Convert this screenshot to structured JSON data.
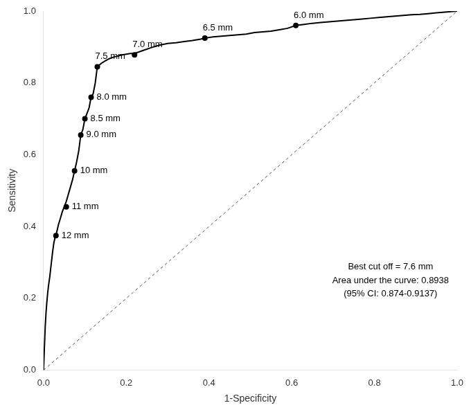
{
  "chart_data": {
    "type": "line",
    "xlabel": "1-Specificity",
    "ylabel": "Sensitivity",
    "annotations": [
      "Best cut off = 7.6 mm",
      "Area under the curve: 0.8938",
      "(95% CI: 0.874-0.9137)"
    ],
    "xlim": [
      0.0,
      1.0
    ],
    "ylim": [
      0.0,
      1.0
    ],
    "xticks": [
      {
        "value": 0.0,
        "label": "0.0"
      },
      0.2,
      0.4,
      0.6,
      0.8,
      {
        "value": 1.0,
        "label": "1.0"
      }
    ],
    "yticks": [
      {
        "value": 0.0,
        "label": "0.0"
      },
      0.2,
      0.4,
      0.6,
      0.8,
      {
        "value": 1.0,
        "label": "1.0"
      }
    ],
    "grid": false,
    "series": [
      {
        "type": "line",
        "line_style": "dashed",
        "color": "#555555",
        "x": [
          0,
          1
        ],
        "values": [
          0,
          1
        ]
      },
      {
        "type": "line",
        "line_style": "solid",
        "color": "#000000",
        "x": [
          0.0,
          0.002,
          0.004,
          0.006,
          0.008,
          0.01,
          0.012,
          0.015,
          0.018,
          0.02,
          0.022,
          0.025,
          0.028,
          0.03,
          0.033,
          0.036,
          0.04,
          0.045,
          0.05,
          0.055,
          0.06,
          0.065,
          0.07,
          0.075,
          0.08,
          0.085,
          0.09,
          0.095,
          0.1,
          0.105,
          0.11,
          0.115,
          0.12,
          0.125,
          0.13,
          0.14,
          0.15,
          0.16,
          0.17,
          0.18,
          0.19,
          0.2,
          0.21,
          0.22,
          0.24,
          0.26,
          0.28,
          0.3,
          0.32,
          0.34,
          0.36,
          0.38,
          0.39,
          0.41,
          0.43,
          0.45,
          0.47,
          0.49,
          0.51,
          0.53,
          0.55,
          0.57,
          0.59,
          0.61,
          0.63,
          0.65,
          0.67,
          0.69,
          0.71,
          0.73,
          0.75,
          0.77,
          0.79,
          0.81,
          0.83,
          0.85,
          0.87,
          0.89,
          0.91,
          0.93,
          0.95,
          0.97,
          0.99,
          1.0
        ],
        "values": [
          0.0,
          0.06,
          0.12,
          0.16,
          0.19,
          0.215,
          0.235,
          0.26,
          0.29,
          0.31,
          0.33,
          0.355,
          0.37,
          0.375,
          0.39,
          0.405,
          0.42,
          0.44,
          0.455,
          0.47,
          0.49,
          0.51,
          0.53,
          0.555,
          0.58,
          0.61,
          0.655,
          0.67,
          0.7,
          0.715,
          0.73,
          0.76,
          0.77,
          0.8,
          0.845,
          0.855,
          0.862,
          0.868,
          0.872,
          0.875,
          0.878,
          0.88,
          0.882,
          0.882,
          0.89,
          0.898,
          0.905,
          0.91,
          0.912,
          0.915,
          0.918,
          0.922,
          0.925,
          0.928,
          0.93,
          0.932,
          0.934,
          0.936,
          0.94,
          0.942,
          0.944,
          0.948,
          0.952,
          0.96,
          0.963,
          0.966,
          0.968,
          0.97,
          0.972,
          0.974,
          0.976,
          0.978,
          0.98,
          0.982,
          0.984,
          0.986,
          0.988,
          0.99,
          0.991,
          0.993,
          0.995,
          0.997,
          0.999,
          1.0
        ]
      },
      {
        "type": "scatter",
        "marker": "circle",
        "color": "#000000",
        "x": [
          0.03,
          0.055,
          0.075,
          0.09,
          0.1,
          0.115,
          0.13,
          0.22,
          0.39,
          0.61
        ],
        "values": [
          0.375,
          0.455,
          0.555,
          0.655,
          0.7,
          0.76,
          0.845,
          0.878,
          0.925,
          0.96
        ],
        "labels": [
          "12 mm",
          "11 mm",
          "10 mm",
          "9.0 mm",
          "8.5 mm",
          "8.0 mm",
          "7.5 mm",
          "7.0 mm",
          "6.5 mm",
          "6.0 mm"
        ]
      }
    ]
  }
}
